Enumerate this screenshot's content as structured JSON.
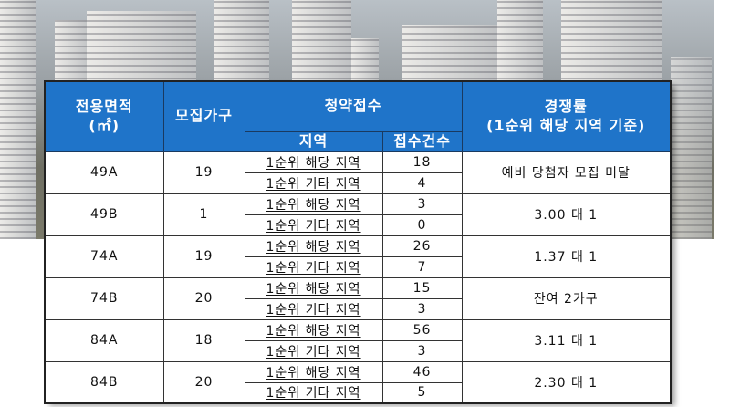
{
  "header": {
    "area": "전용면적",
    "area_unit": "(㎡)",
    "households": "모집가구",
    "application": "청약접수",
    "region": "지역",
    "count": "접수건수",
    "rate": "경쟁률",
    "rate_note": "(1순위 해당 지역 기준)"
  },
  "rows": [
    {
      "area": "49A",
      "households": "19",
      "r1": "1순위 해당 지역",
      "c1": "18",
      "r2": "1순위 기타 지역",
      "c2": "4",
      "rate": "예비 당첨자 모집 미달"
    },
    {
      "area": "49B",
      "households": "1",
      "r1": "1순위 해당 지역",
      "c1": "3",
      "r2": "1순위 기타 지역",
      "c2": "0",
      "rate": "3.00 대 1"
    },
    {
      "area": "74A",
      "households": "19",
      "r1": "1순위 해당 지역",
      "c1": "26",
      "r2": "1순위 기타 지역",
      "c2": "7",
      "rate": "1.37 대 1"
    },
    {
      "area": "74B",
      "households": "20",
      "r1": "1순위 해당 지역",
      "c1": "15",
      "r2": "1순위 기타 지역",
      "c2": "3",
      "rate": "잔여 2가구"
    },
    {
      "area": "84A",
      "households": "18",
      "r1": "1순위 해당 지역",
      "c1": "56",
      "r2": "1순위 기타 지역",
      "c2": "3",
      "rate": "3.11 대 1"
    },
    {
      "area": "84B",
      "households": "20",
      "r1": "1순위 해당 지역",
      "c1": "46",
      "r2": "1순위 기타 지역",
      "c2": "5",
      "rate": "2.30 대 1"
    }
  ],
  "colors": {
    "header_bg": "#1f74c9",
    "header_text": "#ffffff"
  }
}
